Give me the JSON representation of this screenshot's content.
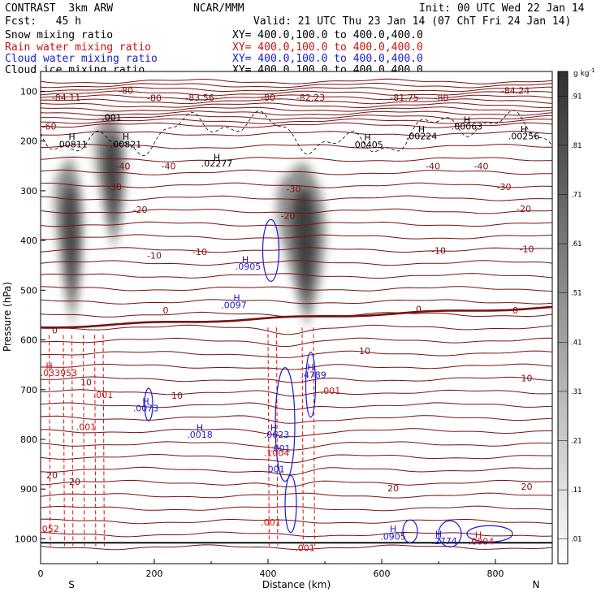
{
  "header": {
    "model": "CONTRAST  3km ARW",
    "org": "NCAR/MMM",
    "init": "Init: 00 UTC Wed 22 Jan 14",
    "fcst": "Fcst:   45 h",
    "valid": "Valid: 21 UTC Thu 23 Jan 14 (07 ChT Fri 24 Jan 14)"
  },
  "legend": [
    {
      "label": "Snow mixing ratio",
      "xy": "XY= 400.0,100.0 to 400.0,400.0",
      "color": "#000000"
    },
    {
      "label": "Rain water mixing ratio",
      "xy": "XY= 400.0,100.0 to 400.0,400.0",
      "color": "#cc1010"
    },
    {
      "label": "Cloud water mixing ratio",
      "xy": "XY= 400.0,100.0 to 400.0,400.0",
      "color": "#1a1ad0"
    },
    {
      "label": "Cloud ice mixing ratio",
      "xy": "XY= 400.0,100.0 to 400.0,400.0",
      "color": "#000000"
    }
  ],
  "chart_data": {
    "type": "heatmap",
    "xlabel": "Distance (km)",
    "ylabel": "Pressure (hPa)",
    "xlim": [
      0,
      900
    ],
    "ylim": [
      1050,
      60
    ],
    "xticks": [
      0,
      200,
      400,
      600,
      800
    ],
    "yticks": [
      100,
      200,
      300,
      400,
      500,
      600,
      700,
      800,
      900,
      1000
    ],
    "end_labels": {
      "left": "S",
      "right": "N"
    },
    "colorbar": {
      "unit": "g kg",
      "unit_exp": "-1",
      "ticks": [
        ".01",
        ".11",
        ".21",
        ".31",
        ".41",
        ".51",
        ".61",
        ".71",
        ".81",
        ".91"
      ]
    },
    "snow_plumes": [
      {
        "x": [
          15,
          80
        ],
        "p_top": 230,
        "p_bottom": 575
      },
      {
        "x": [
          85,
          155
        ],
        "p_top": 140,
        "p_bottom": 420
      },
      {
        "x": [
          400,
          510
        ],
        "p_top": 240,
        "p_bottom": 575
      }
    ],
    "temperature_labels": [
      {
        "x": 45,
        "p": 112,
        "text": "-84.11"
      },
      {
        "x": 150,
        "p": 98,
        "text": "-80"
      },
      {
        "x": 200,
        "p": 113,
        "text": "-80"
      },
      {
        "x": 280,
        "p": 112,
        "text": "-83.56"
      },
      {
        "x": 400,
        "p": 112,
        "text": "-80"
      },
      {
        "x": 475,
        "p": 112,
        "text": "-82.23"
      },
      {
        "x": 640,
        "p": 112,
        "text": "-81.75"
      },
      {
        "x": 705,
        "p": 113,
        "text": "-80"
      },
      {
        "x": 835,
        "p": 98,
        "text": "-84.24"
      },
      {
        "x": 15,
        "p": 170,
        "text": "-60"
      },
      {
        "x": 145,
        "p": 250,
        "text": "-40"
      },
      {
        "x": 225,
        "p": 250,
        "text": "-40"
      },
      {
        "x": 690,
        "p": 250,
        "text": "-40"
      },
      {
        "x": 775,
        "p": 250,
        "text": "-40"
      },
      {
        "x": 130,
        "p": 292,
        "text": "-30"
      },
      {
        "x": 445,
        "p": 296,
        "text": "-30"
      },
      {
        "x": 815,
        "p": 292,
        "text": "-30"
      },
      {
        "x": 175,
        "p": 338,
        "text": "-20"
      },
      {
        "x": 435,
        "p": 350,
        "text": "-20"
      },
      {
        "x": 850,
        "p": 336,
        "text": "-20"
      },
      {
        "x": 200,
        "p": 430,
        "text": "-10"
      },
      {
        "x": 280,
        "p": 423,
        "text": "-10"
      },
      {
        "x": 700,
        "p": 420,
        "text": "-10"
      },
      {
        "x": 855,
        "p": 417,
        "text": "-10"
      },
      {
        "x": 25,
        "p": 580,
        "text": "0"
      },
      {
        "x": 220,
        "p": 540,
        "text": "0"
      },
      {
        "x": 665,
        "p": 538,
        "text": "0"
      },
      {
        "x": 835,
        "p": 540,
        "text": "0"
      },
      {
        "x": 80,
        "p": 685,
        "text": "10"
      },
      {
        "x": 240,
        "p": 712,
        "text": "10"
      },
      {
        "x": 570,
        "p": 622,
        "text": "10"
      },
      {
        "x": 855,
        "p": 677,
        "text": "10"
      },
      {
        "x": 20,
        "p": 872,
        "text": "20"
      },
      {
        "x": 60,
        "p": 885,
        "text": "20"
      },
      {
        "x": 620,
        "p": 898,
        "text": "20"
      },
      {
        "x": 855,
        "p": 895,
        "text": "20"
      }
    ],
    "annotations": [
      {
        "x": 55,
        "p": 191,
        "text": "H",
        "color": "#000000"
      },
      {
        "x": 55,
        "p": 206,
        "text": ".00811",
        "color": "#000000"
      },
      {
        "x": 150,
        "p": 191,
        "text": "H",
        "color": "#000000"
      },
      {
        "x": 150,
        "p": 206,
        "text": ".00821",
        "color": "#000000"
      },
      {
        "x": 125,
        "p": 152,
        "text": ".001",
        "color": "#000000"
      },
      {
        "x": 310,
        "p": 232,
        "text": "H",
        "color": "#000000"
      },
      {
        "x": 310,
        "p": 245,
        "text": ".02277",
        "color": "#000000"
      },
      {
        "x": 575,
        "p": 192,
        "text": "H",
        "color": "#000000"
      },
      {
        "x": 575,
        "p": 207,
        "text": ".00405",
        "color": "#000000"
      },
      {
        "x": 670,
        "p": 176,
        "text": "H",
        "color": "#000000"
      },
      {
        "x": 670,
        "p": 190,
        "text": ".00224",
        "color": "#000000"
      },
      {
        "x": 750,
        "p": 157,
        "text": "H",
        "color": "#000000"
      },
      {
        "x": 750,
        "p": 170,
        "text": ".00063",
        "color": "#000000"
      },
      {
        "x": 850,
        "p": 176,
        "text": "H",
        "color": "#000000"
      },
      {
        "x": 850,
        "p": 190,
        "text": ".00256",
        "color": "#000000"
      },
      {
        "x": 360,
        "p": 438,
        "text": "H",
        "color": "#1a1ad0"
      },
      {
        "x": 365,
        "p": 452,
        "text": ".0905",
        "color": "#1a1ad0"
      },
      {
        "x": 345,
        "p": 515,
        "text": "H",
        "color": "#1a1ad0"
      },
      {
        "x": 340,
        "p": 530,
        "text": ".0097",
        "color": "#1a1ad0"
      },
      {
        "x": 185,
        "p": 723,
        "text": "H",
        "color": "#1a1ad0"
      },
      {
        "x": 185,
        "p": 737,
        "text": ".0073",
        "color": "#1a1ad0"
      },
      {
        "x": 280,
        "p": 776,
        "text": "H",
        "color": "#1a1ad0"
      },
      {
        "x": 280,
        "p": 790,
        "text": ".0018",
        "color": "#1a1ad0"
      },
      {
        "x": 410,
        "p": 776,
        "text": "H",
        "color": "#1a1ad0"
      },
      {
        "x": 415,
        "p": 790,
        "text": ".0623",
        "color": "#1a1ad0"
      },
      {
        "x": 422,
        "p": 818,
        "text": ".001",
        "color": "#1a1ad0"
      },
      {
        "x": 412,
        "p": 860,
        "text": ".001",
        "color": "#1a1ad0"
      },
      {
        "x": 475,
        "p": 655,
        "text": "H",
        "color": "#1a1ad0"
      },
      {
        "x": 480,
        "p": 670,
        "text": ".4789",
        "color": "#1a1ad0"
      },
      {
        "x": 620,
        "p": 980,
        "text": "H",
        "color": "#1a1ad0"
      },
      {
        "x": 620,
        "p": 995,
        "text": ".0905",
        "color": "#1a1ad0"
      },
      {
        "x": 700,
        "p": 990,
        "text": "H",
        "color": "#1a1ad0"
      },
      {
        "x": 710,
        "p": 1004,
        "text": ".2774",
        "color": "#1a1ad0"
      },
      {
        "x": 770,
        "p": 992,
        "text": "H",
        "color": "#cc1010"
      },
      {
        "x": 775,
        "p": 1005,
        "text": ".0004",
        "color": "#cc1010"
      },
      {
        "x": 15,
        "p": 652,
        "text": "H",
        "color": "#cc1010"
      },
      {
        "x": 32,
        "p": 666,
        "text": ".033953",
        "color": "#cc1010"
      },
      {
        "x": 110,
        "p": 710,
        "text": ".001",
        "color": "#cc1010"
      },
      {
        "x": 80,
        "p": 775,
        "text": ".001",
        "color": "#cc1010"
      },
      {
        "x": 510,
        "p": 702,
        "text": ".001",
        "color": "#cc1010"
      },
      {
        "x": 415,
        "p": 827,
        "text": ".1004",
        "color": "#cc1010"
      },
      {
        "x": 405,
        "p": 967,
        "text": ".001",
        "color": "#cc1010"
      },
      {
        "x": 465,
        "p": 1018,
        "text": ".001",
        "color": "#cc1010"
      },
      {
        "x": 15,
        "p": 980,
        "text": ".052",
        "color": "#cc1010"
      }
    ]
  }
}
